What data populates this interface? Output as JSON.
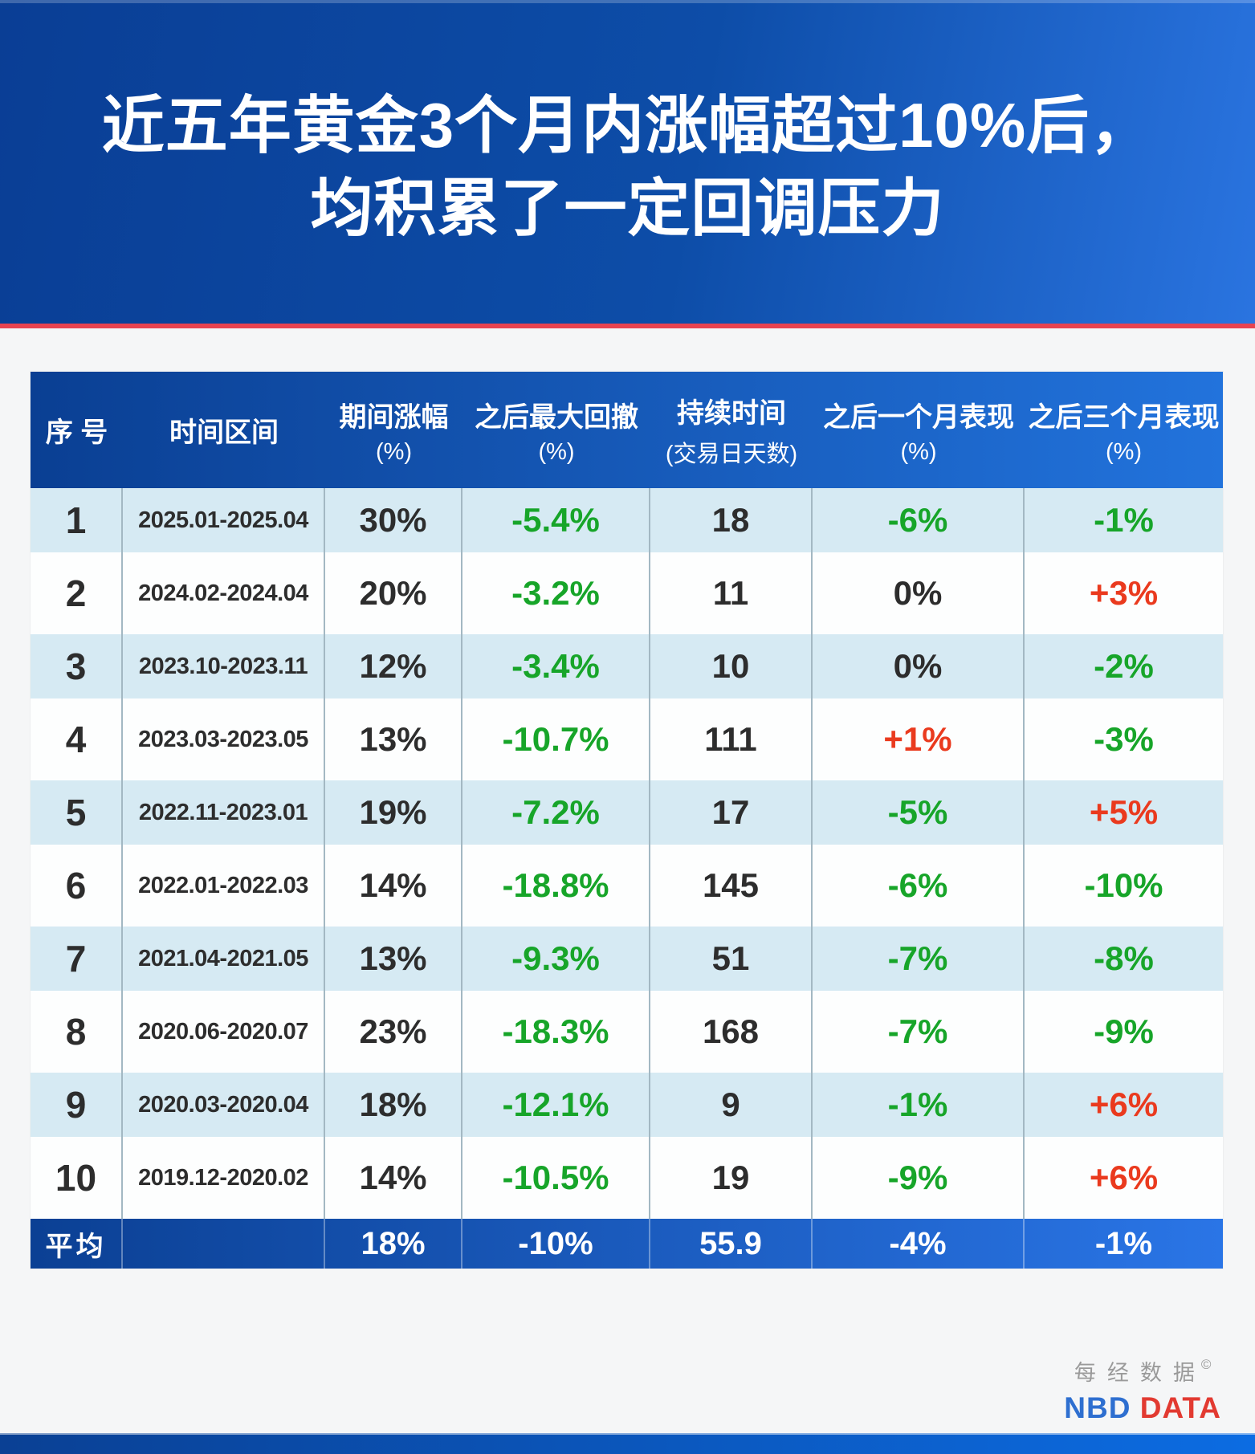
{
  "title": {
    "line1": "近五年黄金3个月内涨幅超过10%后，",
    "line2": "均积累了一定回调压力"
  },
  "chart_data": {
    "type": "table",
    "title": "近五年黄金3个月内涨幅超过10%后，均积累了一定回调压力",
    "columns": [
      {
        "label": "序 号",
        "sub": ""
      },
      {
        "label": "时间区间",
        "sub": ""
      },
      {
        "label": "期间涨幅",
        "sub": "(%)"
      },
      {
        "label": "之后最大回撤",
        "sub": "(%)"
      },
      {
        "label": "持续时间",
        "sub": "(交易日天数)"
      },
      {
        "label": "之后一个月表现",
        "sub": "(%)"
      },
      {
        "label": "之后三个月表现",
        "sub": "(%)"
      }
    ],
    "rows": [
      {
        "cells": [
          "1",
          "2025.01-2025.04",
          "30%",
          "-5.4%",
          "18",
          "-6%",
          "-1%"
        ],
        "colors": [
          "dark",
          "dark",
          "dark",
          "green",
          "dark",
          "green",
          "green"
        ]
      },
      {
        "cells": [
          "2",
          "2024.02-2024.04",
          "20%",
          "-3.2%",
          "11",
          "0%",
          "+3%"
        ],
        "colors": [
          "dark",
          "dark",
          "dark",
          "green",
          "dark",
          "dark",
          "red"
        ]
      },
      {
        "cells": [
          "3",
          "2023.10-2023.11",
          "12%",
          "-3.4%",
          "10",
          "0%",
          "-2%"
        ],
        "colors": [
          "dark",
          "dark",
          "dark",
          "green",
          "dark",
          "dark",
          "green"
        ]
      },
      {
        "cells": [
          "4",
          "2023.03-2023.05",
          "13%",
          "-10.7%",
          "111",
          "+1%",
          "-3%"
        ],
        "colors": [
          "dark",
          "dark",
          "dark",
          "green",
          "dark",
          "red",
          "green"
        ]
      },
      {
        "cells": [
          "5",
          "2022.11-2023.01",
          "19%",
          "-7.2%",
          "17",
          "-5%",
          "+5%"
        ],
        "colors": [
          "dark",
          "dark",
          "dark",
          "green",
          "dark",
          "green",
          "red"
        ]
      },
      {
        "cells": [
          "6",
          "2022.01-2022.03",
          "14%",
          "-18.8%",
          "145",
          "-6%",
          "-10%"
        ],
        "colors": [
          "dark",
          "dark",
          "dark",
          "green",
          "dark",
          "green",
          "green"
        ]
      },
      {
        "cells": [
          "7",
          "2021.04-2021.05",
          "13%",
          "-9.3%",
          "51",
          "-7%",
          "-8%"
        ],
        "colors": [
          "dark",
          "dark",
          "dark",
          "green",
          "dark",
          "green",
          "green"
        ]
      },
      {
        "cells": [
          "8",
          "2020.06-2020.07",
          "23%",
          "-18.3%",
          "168",
          "-7%",
          "-9%"
        ],
        "colors": [
          "dark",
          "dark",
          "dark",
          "green",
          "dark",
          "green",
          "green"
        ]
      },
      {
        "cells": [
          "9",
          "2020.03-2020.04",
          "18%",
          "-12.1%",
          "9",
          "-1%",
          "+6%"
        ],
        "colors": [
          "dark",
          "dark",
          "dark",
          "green",
          "dark",
          "green",
          "red"
        ]
      },
      {
        "cells": [
          "10",
          "2019.12-2020.02",
          "14%",
          "-10.5%",
          "19",
          "-9%",
          "+6%"
        ],
        "colors": [
          "dark",
          "dark",
          "dark",
          "green",
          "dark",
          "green",
          "red"
        ]
      }
    ],
    "average": [
      "平均",
      "",
      "18%",
      "-10%",
      "55.9",
      "-4%",
      "-1%"
    ]
  },
  "logo": {
    "cn": "每经数据",
    "copyright": "©",
    "nbd": "NBD",
    "data": "DATA"
  },
  "colors": {
    "page_bg": "#f5f6f7",
    "band_from": "#0a3e95",
    "band_to": "#2a74e0",
    "rule_red": "#e84350",
    "header_from": "#0a3f93",
    "header_to": "#2273dc",
    "row_blue": "#d6eaf3",
    "row_white": "#fdfefe",
    "divider": "#a3b8c3",
    "avg_from": "#0b4094",
    "avg_to": "#2a75e6",
    "bottom_from": "#0a4094",
    "bottom_to": "#0c6ce2",
    "dark": "#2d2d2d",
    "green": "#17a529",
    "red": "#ea3a1e",
    "logo_gray": "#9a9a9a",
    "nbd_blue": "#2e6fd0",
    "data_red": "#e23a31"
  }
}
